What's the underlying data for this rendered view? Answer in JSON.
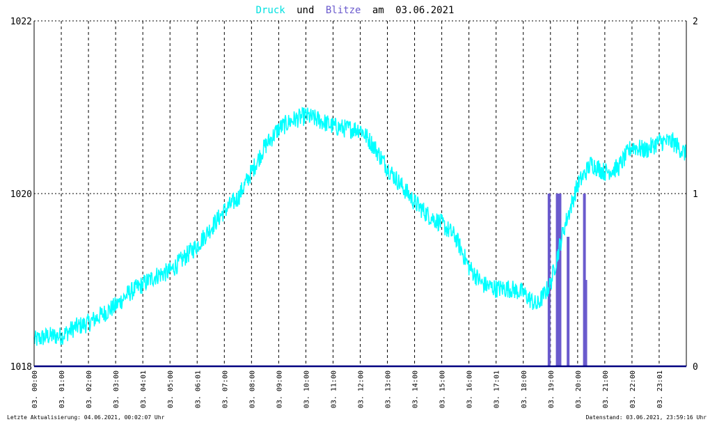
{
  "title": {
    "druck": "Druck",
    "und": "und",
    "blitze": "Blitze",
    "am": "am",
    "date": "03.06.2021"
  },
  "footer": {
    "left": "Letzte Aktualisierung: 04.06.2021, 00:02:07 Uhr",
    "right": "Datenstand: 03.06.2021, 23:59:16 Uhr"
  },
  "colors": {
    "pressure": "#00ffff",
    "lightning": "#6a5acd",
    "baseline": "#000080",
    "title_druck": "#00e0e0",
    "title_blitze": "#6a5acd"
  },
  "chart_data": {
    "type": "line",
    "left_axis": {
      "ticks": [
        "1018",
        "1020",
        "1022"
      ],
      "ylim": [
        1018,
        1022
      ]
    },
    "right_axis": {
      "ticks": [
        "0",
        "1",
        "2"
      ],
      "ylim": [
        0,
        2
      ]
    },
    "xlim_hours": [
      0,
      24
    ],
    "x_tick_labels": [
      "03. 00:00",
      "03. 01:00",
      "03. 02:00",
      "03. 03:00",
      "03. 04:01",
      "03. 05:00",
      "03. 06:01",
      "03. 07:00",
      "03. 08:00",
      "03. 09:00",
      "03. 10:00",
      "03. 11:00",
      "03. 12:00",
      "03. 13:00",
      "03. 14:00",
      "03. 15:00",
      "03. 16:00",
      "03. 17:01",
      "03. 18:00",
      "03. 19:00",
      "03. 20:00",
      "03. 21:00",
      "03. 22:00",
      "03. 23:01"
    ],
    "grid": true,
    "series": [
      {
        "name": "Druck",
        "axis": "left",
        "x_hours": [
          0,
          0.5,
          1,
          1.5,
          2,
          2.5,
          3,
          3.5,
          4,
          4.5,
          5,
          5.5,
          6,
          6.5,
          7,
          7.5,
          8,
          8.5,
          9,
          9.5,
          10,
          10.5,
          11,
          11.5,
          12,
          12.5,
          13,
          13.5,
          14,
          14.5,
          15,
          15.5,
          16,
          16.5,
          17,
          17.5,
          18,
          18.5,
          19,
          19.5,
          20,
          20.5,
          21,
          21.5,
          22,
          22.5,
          23,
          23.5,
          24
        ],
        "values": [
          1018.3,
          1018.35,
          1018.35,
          1018.45,
          1018.5,
          1018.6,
          1018.7,
          1018.85,
          1018.95,
          1019.05,
          1019.1,
          1019.25,
          1019.4,
          1019.6,
          1019.8,
          1019.95,
          1020.25,
          1020.55,
          1020.75,
          1020.85,
          1020.9,
          1020.85,
          1020.78,
          1020.75,
          1020.75,
          1020.55,
          1020.3,
          1020.1,
          1019.9,
          1019.75,
          1019.65,
          1019.5,
          1019.15,
          1018.95,
          1018.9,
          1018.9,
          1018.85,
          1018.7,
          1018.95,
          1019.6,
          1020.1,
          1020.35,
          1020.25,
          1020.3,
          1020.55,
          1020.5,
          1020.6,
          1020.6,
          1020.45
        ]
      },
      {
        "name": "Blitze",
        "axis": "right",
        "bars": [
          {
            "x_hours": 18.95,
            "value": 1
          },
          {
            "x_hours": 19.25,
            "value": 1
          },
          {
            "x_hours": 19.3,
            "value": 1
          },
          {
            "x_hours": 19.35,
            "value": 1
          },
          {
            "x_hours": 19.65,
            "value": 0.75
          },
          {
            "x_hours": 20.25,
            "value": 1
          },
          {
            "x_hours": 20.3,
            "value": 0.5
          }
        ]
      }
    ]
  }
}
